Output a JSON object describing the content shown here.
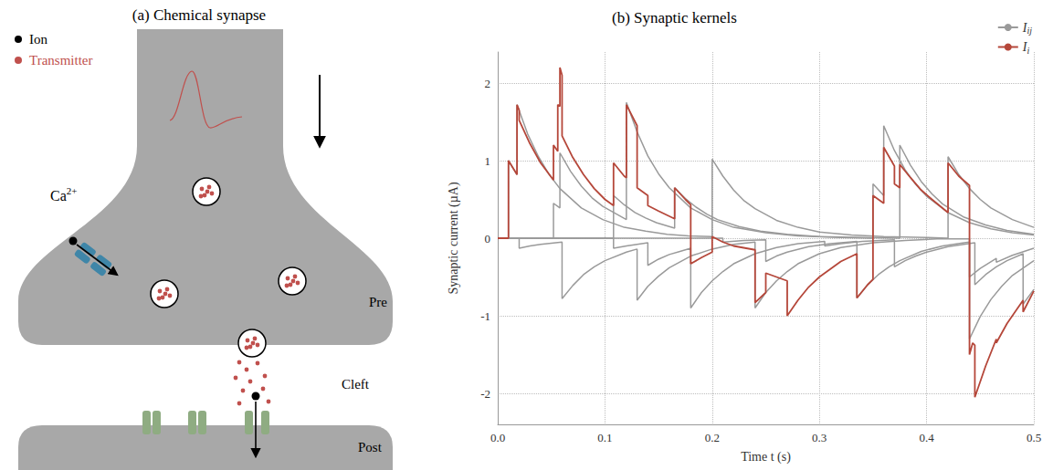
{
  "diagram": {
    "title": "(a) Chemical synapse",
    "legend": [
      {
        "label": "Ion",
        "color": "#000000"
      },
      {
        "label": "Transmitter",
        "color": "#c0504d"
      }
    ],
    "labels": {
      "channel": {
        "text": "Ca",
        "sup": "2+"
      },
      "pre": "Pre",
      "cleft": "Cleft",
      "post": "Post"
    }
  },
  "chart_data": {
    "type": "line",
    "title": "(b) Synaptic kernels",
    "xlabel": "Time t (s)",
    "ylabel": "Synaptic current (µA)",
    "xlim": [
      0,
      0.5
    ],
    "xticks": [
      {
        "value": 0,
        "label": "0.0"
      },
      0.1,
      0.2,
      0.3,
      0.4,
      0.5
    ],
    "ylim": [
      -2.4,
      2.4
    ],
    "yticks": [
      -2,
      -1,
      0,
      1,
      2
    ],
    "grid": true,
    "legend": "top-right",
    "series": [
      {
        "name": "I",
        "subscript": "ij",
        "color": "#9a9a9a",
        "points": [
          [
            0,
            0
          ],
          [
            0.01,
            0
          ],
          [
            0.01,
            1.0
          ],
          [
            0.018,
            0.82
          ],
          [
            0.018,
            1.72
          ],
          [
            0.028,
            1.34
          ],
          [
            0.038,
            1.05
          ],
          [
            0.048,
            0.82
          ],
          [
            0.058,
            0.64
          ],
          [
            0.078,
            0.39
          ],
          [
            0.098,
            0.24
          ],
          [
            0.118,
            0.14
          ],
          [
            0.138,
            0.09
          ],
          [
            0.158,
            0.05
          ],
          [
            0.178,
            0.03
          ],
          [
            0.2,
            0.02
          ],
          [
            0.2,
            1.02
          ],
          [
            0.21,
            0.8
          ],
          [
            0.22,
            0.62
          ],
          [
            0.23,
            0.48
          ],
          [
            0.24,
            0.38
          ],
          [
            0.26,
            0.23
          ],
          [
            0.28,
            0.14
          ],
          [
            0.3,
            0.08
          ],
          [
            0.33,
            0.04
          ],
          [
            0.36,
            0.02
          ],
          [
            0.4,
            0.01
          ],
          [
            0.42,
            0.0
          ],
          [
            0.42,
            1.05
          ],
          [
            0.43,
            0.82
          ],
          [
            0.44,
            0.64
          ],
          [
            0.45,
            0.5
          ],
          [
            0.46,
            0.39
          ],
          [
            0.48,
            0.24
          ],
          [
            0.5,
            0.14
          ]
        ]
      },
      {
        "name": "I",
        "subscript": "ij",
        "color": "#9a9a9a",
        "points": [
          [
            0,
            0
          ],
          [
            0.052,
            0
          ],
          [
            0.052,
            0.45
          ],
          [
            0.058,
            0.39
          ],
          [
            0.058,
            1.1
          ],
          [
            0.068,
            0.86
          ],
          [
            0.078,
            0.67
          ],
          [
            0.088,
            0.52
          ],
          [
            0.098,
            0.41
          ],
          [
            0.12,
            0.24
          ],
          [
            0.12,
            1.75
          ],
          [
            0.13,
            1.37
          ],
          [
            0.14,
            1.06
          ],
          [
            0.15,
            0.83
          ],
          [
            0.16,
            0.65
          ],
          [
            0.18,
            0.39
          ],
          [
            0.2,
            0.24
          ],
          [
            0.22,
            0.14
          ],
          [
            0.25,
            0.07
          ],
          [
            0.28,
            0.03
          ],
          [
            0.32,
            0.01
          ],
          [
            0.35,
            0.0
          ],
          [
            0.35,
            0.7
          ],
          [
            0.36,
            0.55
          ],
          [
            0.36,
            1.45
          ],
          [
            0.37,
            1.13
          ],
          [
            0.38,
            0.88
          ],
          [
            0.39,
            0.69
          ],
          [
            0.4,
            0.54
          ],
          [
            0.42,
            0.33
          ],
          [
            0.44,
            0.2
          ],
          [
            0.46,
            0.12
          ],
          [
            0.48,
            0.07
          ],
          [
            0.5,
            0.04
          ]
        ]
      },
      {
        "name": "I",
        "subscript": "ij",
        "color": "#9a9a9a",
        "points": [
          [
            0,
            0
          ],
          [
            0.108,
            0
          ],
          [
            0.108,
            0.55
          ],
          [
            0.118,
            0.43
          ],
          [
            0.128,
            0.33
          ],
          [
            0.138,
            0.26
          ],
          [
            0.148,
            0.2
          ],
          [
            0.165,
            0.13
          ],
          [
            0.165,
            0.65
          ],
          [
            0.175,
            0.51
          ],
          [
            0.185,
            0.4
          ],
          [
            0.195,
            0.31
          ],
          [
            0.205,
            0.24
          ],
          [
            0.225,
            0.15
          ],
          [
            0.245,
            0.09
          ],
          [
            0.27,
            0.05
          ],
          [
            0.3,
            0.02
          ],
          [
            0.34,
            0.01
          ],
          [
            0.375,
            0.0
          ],
          [
            0.375,
            1.2
          ],
          [
            0.385,
            0.94
          ],
          [
            0.395,
            0.73
          ],
          [
            0.405,
            0.57
          ],
          [
            0.415,
            0.44
          ],
          [
            0.435,
            0.27
          ],
          [
            0.455,
            0.17
          ],
          [
            0.475,
            0.1
          ],
          [
            0.5,
            0.05
          ]
        ]
      },
      {
        "name": "I",
        "subscript": "ij",
        "color": "#9a9a9a",
        "points": [
          [
            0,
            0
          ],
          [
            0.02,
            0
          ],
          [
            0.02,
            -0.13
          ],
          [
            0.03,
            -0.1
          ],
          [
            0.04,
            -0.08
          ],
          [
            0.06,
            -0.05
          ],
          [
            0.06,
            -0.78
          ],
          [
            0.07,
            -0.61
          ],
          [
            0.08,
            -0.47
          ],
          [
            0.09,
            -0.37
          ],
          [
            0.1,
            -0.29
          ],
          [
            0.12,
            -0.18
          ],
          [
            0.13,
            -0.14
          ],
          [
            0.13,
            -0.8
          ],
          [
            0.14,
            -0.62
          ],
          [
            0.15,
            -0.49
          ],
          [
            0.16,
            -0.38
          ],
          [
            0.18,
            -0.23
          ],
          [
            0.2,
            -0.14
          ],
          [
            0.22,
            -0.08
          ],
          [
            0.24,
            -0.05
          ],
          [
            0.24,
            -0.9
          ],
          [
            0.25,
            -0.7
          ],
          [
            0.26,
            -0.55
          ],
          [
            0.27,
            -0.43
          ],
          [
            0.28,
            -0.33
          ],
          [
            0.3,
            -0.2
          ],
          [
            0.32,
            -0.12
          ],
          [
            0.35,
            -0.06
          ],
          [
            0.38,
            -0.03
          ],
          [
            0.41,
            -0.01
          ],
          [
            0.44,
            -0.01
          ],
          [
            0.44,
            -1.3
          ],
          [
            0.45,
            -1.01
          ],
          [
            0.46,
            -0.79
          ],
          [
            0.47,
            -0.62
          ],
          [
            0.48,
            -0.48
          ],
          [
            0.5,
            -0.29
          ]
        ]
      },
      {
        "name": "I",
        "subscript": "ij",
        "color": "#9a9a9a",
        "points": [
          [
            0,
            0
          ],
          [
            0.108,
            0
          ],
          [
            0.108,
            -0.13
          ],
          [
            0.12,
            -0.1
          ],
          [
            0.14,
            -0.06
          ],
          [
            0.14,
            -0.35
          ],
          [
            0.15,
            -0.27
          ],
          [
            0.16,
            -0.21
          ],
          [
            0.17,
            -0.17
          ],
          [
            0.18,
            -0.13
          ],
          [
            0.18,
            -0.9
          ],
          [
            0.19,
            -0.7
          ],
          [
            0.2,
            -0.55
          ],
          [
            0.21,
            -0.43
          ],
          [
            0.22,
            -0.33
          ],
          [
            0.24,
            -0.2
          ],
          [
            0.26,
            -0.12
          ],
          [
            0.28,
            -0.07
          ],
          [
            0.305,
            -0.04
          ],
          [
            0.305,
            -0.1
          ],
          [
            0.32,
            -0.07
          ],
          [
            0.34,
            -0.04
          ],
          [
            0.37,
            -0.02
          ],
          [
            0.37,
            -0.37
          ],
          [
            0.38,
            -0.29
          ],
          [
            0.39,
            -0.23
          ],
          [
            0.4,
            -0.18
          ],
          [
            0.42,
            -0.11
          ],
          [
            0.445,
            -0.06
          ],
          [
            0.445,
            -0.6
          ],
          [
            0.455,
            -0.47
          ],
          [
            0.465,
            -0.37
          ],
          [
            0.475,
            -0.29
          ],
          [
            0.49,
            -0.2
          ],
          [
            0.49,
            -0.85
          ],
          [
            0.5,
            -0.66
          ]
        ]
      },
      {
        "name": "I",
        "subscript": "ij",
        "color": "#9a9a9a",
        "points": [
          [
            0,
            0
          ],
          [
            0.21,
            0
          ],
          [
            0.21,
            -0.05
          ],
          [
            0.23,
            -0.03
          ],
          [
            0.25,
            -0.02
          ],
          [
            0.25,
            -0.3
          ],
          [
            0.26,
            -0.23
          ],
          [
            0.27,
            -0.18
          ],
          [
            0.29,
            -0.11
          ],
          [
            0.31,
            -0.07
          ],
          [
            0.335,
            -0.04
          ],
          [
            0.335,
            -0.77
          ],
          [
            0.345,
            -0.6
          ],
          [
            0.355,
            -0.47
          ],
          [
            0.365,
            -0.37
          ],
          [
            0.375,
            -0.29
          ],
          [
            0.395,
            -0.17
          ],
          [
            0.415,
            -0.1
          ],
          [
            0.435,
            -0.06
          ],
          [
            0.44,
            -0.05
          ],
          [
            0.44,
            -0.5
          ],
          [
            0.45,
            -0.39
          ],
          [
            0.465,
            -0.26
          ],
          [
            0.465,
            -0.31
          ],
          [
            0.48,
            -0.22
          ],
          [
            0.5,
            -0.13
          ]
        ]
      },
      {
        "name": "I",
        "subscript": "i",
        "color": "#b5473a",
        "points": [
          [
            0,
            0
          ],
          [
            0.01,
            0
          ],
          [
            0.01,
            1.0
          ],
          [
            0.018,
            0.82
          ],
          [
            0.018,
            1.72
          ],
          [
            0.02,
            1.65
          ],
          [
            0.02,
            1.52
          ],
          [
            0.03,
            1.22
          ],
          [
            0.04,
            0.97
          ],
          [
            0.052,
            0.75
          ],
          [
            0.052,
            1.2
          ],
          [
            0.056,
            1.12
          ],
          [
            0.056,
            1.72
          ],
          [
            0.058,
            1.7
          ],
          [
            0.058,
            2.2
          ],
          [
            0.06,
            2.1
          ],
          [
            0.06,
            1.32
          ],
          [
            0.07,
            1.04
          ],
          [
            0.08,
            0.82
          ],
          [
            0.09,
            0.64
          ],
          [
            0.1,
            0.5
          ],
          [
            0.108,
            0.42
          ],
          [
            0.108,
            0.97
          ],
          [
            0.118,
            0.8
          ],
          [
            0.12,
            0.78
          ],
          [
            0.12,
            1.72
          ],
          [
            0.13,
            1.45
          ],
          [
            0.13,
            0.65
          ],
          [
            0.14,
            0.55
          ],
          [
            0.14,
            0.42
          ],
          [
            0.15,
            0.35
          ],
          [
            0.165,
            0.25
          ],
          [
            0.165,
            0.65
          ],
          [
            0.175,
            0.5
          ],
          [
            0.18,
            0.43
          ],
          [
            0.18,
            -0.33
          ],
          [
            0.19,
            -0.25
          ],
          [
            0.2,
            -0.18
          ],
          [
            0.2,
            0.02
          ],
          [
            0.21,
            -0.05
          ],
          [
            0.22,
            -0.1
          ],
          [
            0.24,
            -0.15
          ],
          [
            0.24,
            -0.83
          ],
          [
            0.25,
            -0.7
          ],
          [
            0.25,
            -0.45
          ],
          [
            0.26,
            -0.5
          ],
          [
            0.27,
            -0.55
          ],
          [
            0.27,
            -1.0
          ],
          [
            0.28,
            -0.8
          ],
          [
            0.29,
            -0.63
          ],
          [
            0.3,
            -0.5
          ],
          [
            0.31,
            -0.4
          ],
          [
            0.32,
            -0.3
          ],
          [
            0.335,
            -0.2
          ],
          [
            0.335,
            -0.77
          ],
          [
            0.345,
            -0.6
          ],
          [
            0.35,
            -0.53
          ],
          [
            0.35,
            0.55
          ],
          [
            0.36,
            0.45
          ],
          [
            0.36,
            1.17
          ],
          [
            0.37,
            0.93
          ],
          [
            0.37,
            0.7
          ],
          [
            0.375,
            0.65
          ],
          [
            0.375,
            0.95
          ],
          [
            0.385,
            0.78
          ],
          [
            0.395,
            0.62
          ],
          [
            0.405,
            0.5
          ],
          [
            0.42,
            0.33
          ],
          [
            0.42,
            0.97
          ],
          [
            0.43,
            0.8
          ],
          [
            0.44,
            0.68
          ],
          [
            0.44,
            -1.5
          ],
          [
            0.443,
            -1.35
          ],
          [
            0.445,
            -1.38
          ],
          [
            0.445,
            -2.05
          ],
          [
            0.455,
            -1.65
          ],
          [
            0.465,
            -1.3
          ],
          [
            0.465,
            -1.35
          ],
          [
            0.475,
            -1.1
          ],
          [
            0.49,
            -0.8
          ],
          [
            0.49,
            -0.95
          ],
          [
            0.5,
            -0.68
          ]
        ]
      }
    ]
  }
}
